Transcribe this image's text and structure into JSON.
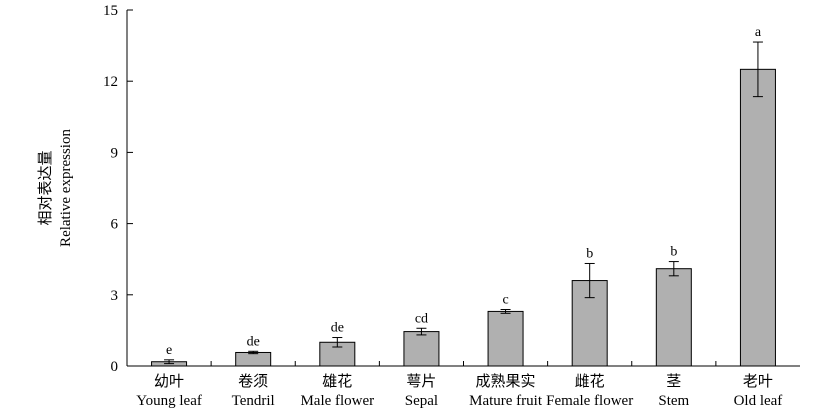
{
  "chart_data": {
    "type": "bar",
    "categories": [
      {
        "cn": "幼叶",
        "en": "Young leaf"
      },
      {
        "cn": "卷须",
        "en": "Tendril"
      },
      {
        "cn": "雄花",
        "en": "Male flower"
      },
      {
        "cn": "萼片",
        "en": "Sepal"
      },
      {
        "cn": "成熟果实",
        "en": "Mature fruit"
      },
      {
        "cn": "雌花",
        "en": "Female flower"
      },
      {
        "cn": "茎",
        "en": "Stem"
      },
      {
        "cn": "老叶",
        "en": "Old leaf"
      }
    ],
    "values": [
      0.18,
      0.57,
      1.0,
      1.45,
      2.3,
      3.6,
      4.1,
      12.5
    ],
    "errors": [
      0.08,
      0.05,
      0.2,
      0.14,
      0.08,
      0.72,
      0.3,
      1.15
    ],
    "significance": [
      "e",
      "de",
      "de",
      "cd",
      "c",
      "b",
      "b",
      "a"
    ],
    "ylabel_cn": "相对表达量",
    "ylabel_en": "Relative expression",
    "ylim": [
      0,
      15
    ],
    "yticks": [
      0,
      3,
      6,
      9,
      12,
      15
    ],
    "grid": false,
    "colors": {
      "bar_fill": "#b0b0b0",
      "bar_stroke": "#000000",
      "axis": "#000000"
    }
  }
}
